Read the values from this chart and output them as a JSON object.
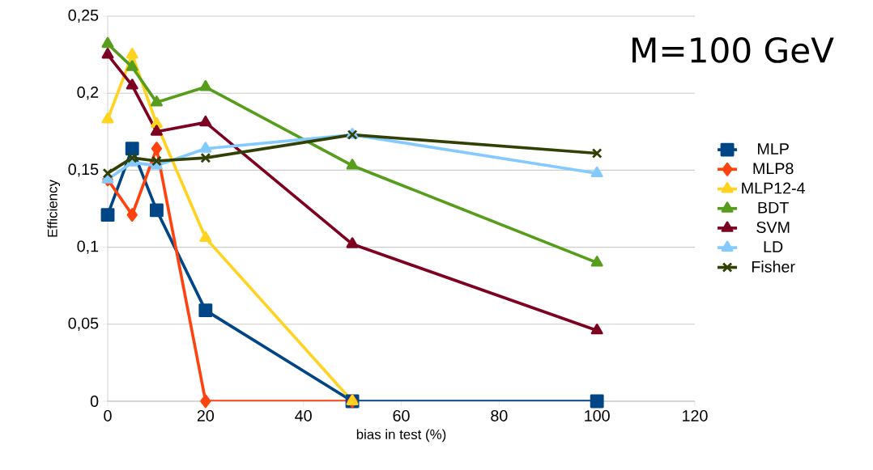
{
  "chart_data": {
    "type": "line",
    "xlabel": "bias in test (%)",
    "ylabel": "Efficiency",
    "annotations": [
      "M=100 GeV"
    ],
    "x": [
      0,
      5,
      10,
      20,
      50,
      100
    ],
    "series": [
      {
        "name": "MLP",
        "color": "#004586",
        "marker": "square",
        "values": [
          0.121,
          0.164,
          0.124,
          0.059,
          0,
          0
        ]
      },
      {
        "name": "MLP8",
        "color": "#ff420e",
        "marker": "diamond",
        "values": [
          0.144,
          0.121,
          0.164,
          0,
          0,
          null
        ]
      },
      {
        "name": "MLP12-4",
        "color": "#ffd320",
        "marker": "triangle",
        "values": [
          0.183,
          0.225,
          0.18,
          0.106,
          0,
          null
        ]
      },
      {
        "name": "BDT",
        "color": "#579d1c",
        "marker": "triangle",
        "values": [
          0.232,
          0.217,
          0.194,
          0.204,
          0.153,
          0.09
        ]
      },
      {
        "name": "SVM",
        "color": "#7e0021",
        "marker": "triangle",
        "values": [
          0.225,
          0.205,
          0.175,
          0.181,
          0.102,
          0.046
        ]
      },
      {
        "name": "LD",
        "color": "#83caff",
        "marker": "triangle",
        "values": [
          0.144,
          0.155,
          0.153,
          0.164,
          0.173,
          0.148
        ]
      },
      {
        "name": "Fisher",
        "color": "#314004",
        "marker": "cross",
        "values": [
          0.148,
          0.158,
          0.156,
          0.158,
          0.173,
          0.161
        ]
      }
    ],
    "xlim": [
      0,
      120
    ],
    "xticks": [
      0,
      20,
      40,
      60,
      80,
      100,
      120
    ],
    "ylim": [
      0,
      0.25
    ],
    "yticks": [
      {
        "value": 0,
        "label": "0"
      },
      {
        "value": 0.05,
        "label": "0,05"
      },
      {
        "value": 0.1,
        "label": "0,1"
      },
      {
        "value": 0.15,
        "label": "0,15"
      },
      {
        "value": 0.2,
        "label": "0,2"
      },
      {
        "value": 0.25,
        "label": "0,25"
      }
    ],
    "grid": "y",
    "legend": "right",
    "line_style": "solid"
  }
}
